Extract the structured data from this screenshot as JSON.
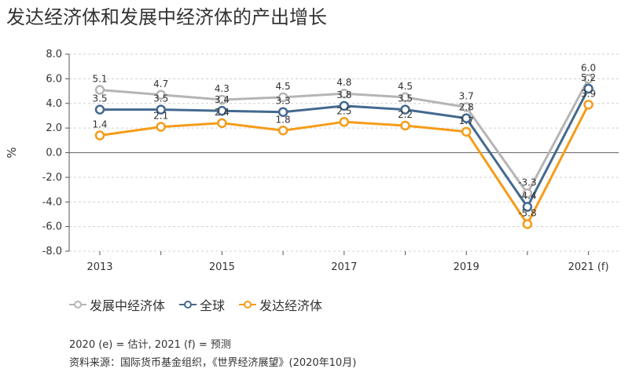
{
  "title": "发达经济体和发展中经济体的产出增长",
  "chart_data": {
    "type": "line",
    "ylabel": "%",
    "ylim": [
      -8.0,
      8.0
    ],
    "y_ticks": [
      "8.0",
      "6.0",
      "4.0",
      "2.0",
      "0.0",
      "-2.0",
      "-4.0",
      "-6.0",
      "-8.0"
    ],
    "x_years": [
      2013,
      2014,
      2015,
      2016,
      2017,
      2018,
      2019,
      2020,
      2021
    ],
    "x_tick_labels": [
      "2013",
      "",
      "2015",
      "",
      "2017",
      "",
      "2019",
      "",
      "2021 (f)"
    ],
    "grid": true,
    "legend_position": "bottom-left",
    "series": [
      {
        "name": "发展中经济体",
        "color": "#b5b5b5",
        "values": [
          5.1,
          4.7,
          4.3,
          4.5,
          4.8,
          4.5,
          3.7,
          -3.3,
          6.0
        ],
        "labels": [
          "5.1",
          "4.7",
          "4.3",
          "4.5",
          "4.8",
          "4.5",
          "3.7",
          "-3.3",
          "6.0"
        ]
      },
      {
        "name": "全球",
        "color": "#44698f",
        "values": [
          3.5,
          3.5,
          3.4,
          3.3,
          3.8,
          3.5,
          2.8,
          -4.4,
          5.2
        ],
        "labels": [
          "3.5",
          "3.5",
          "3.4",
          "3.3",
          "3.8",
          "3.5",
          "2.8",
          "-4.4",
          "5.2"
        ]
      },
      {
        "name": "发达经济体",
        "color": "#f59c1a",
        "values": [
          1.4,
          2.1,
          2.4,
          1.8,
          2.5,
          2.2,
          1.7,
          -5.8,
          3.9
        ],
        "labels": [
          "1.4",
          "2.1",
          "2.4",
          "1.8",
          "2.5",
          "2.2",
          "1.7",
          "-5.8",
          "3.9"
        ]
      }
    ]
  },
  "notes": {
    "line1": "2020 (e) = 估计, 2021 (f) = 预测",
    "line2": "资料来源：国际货币基金组织，《世界经济展望》(2020年10月)"
  }
}
